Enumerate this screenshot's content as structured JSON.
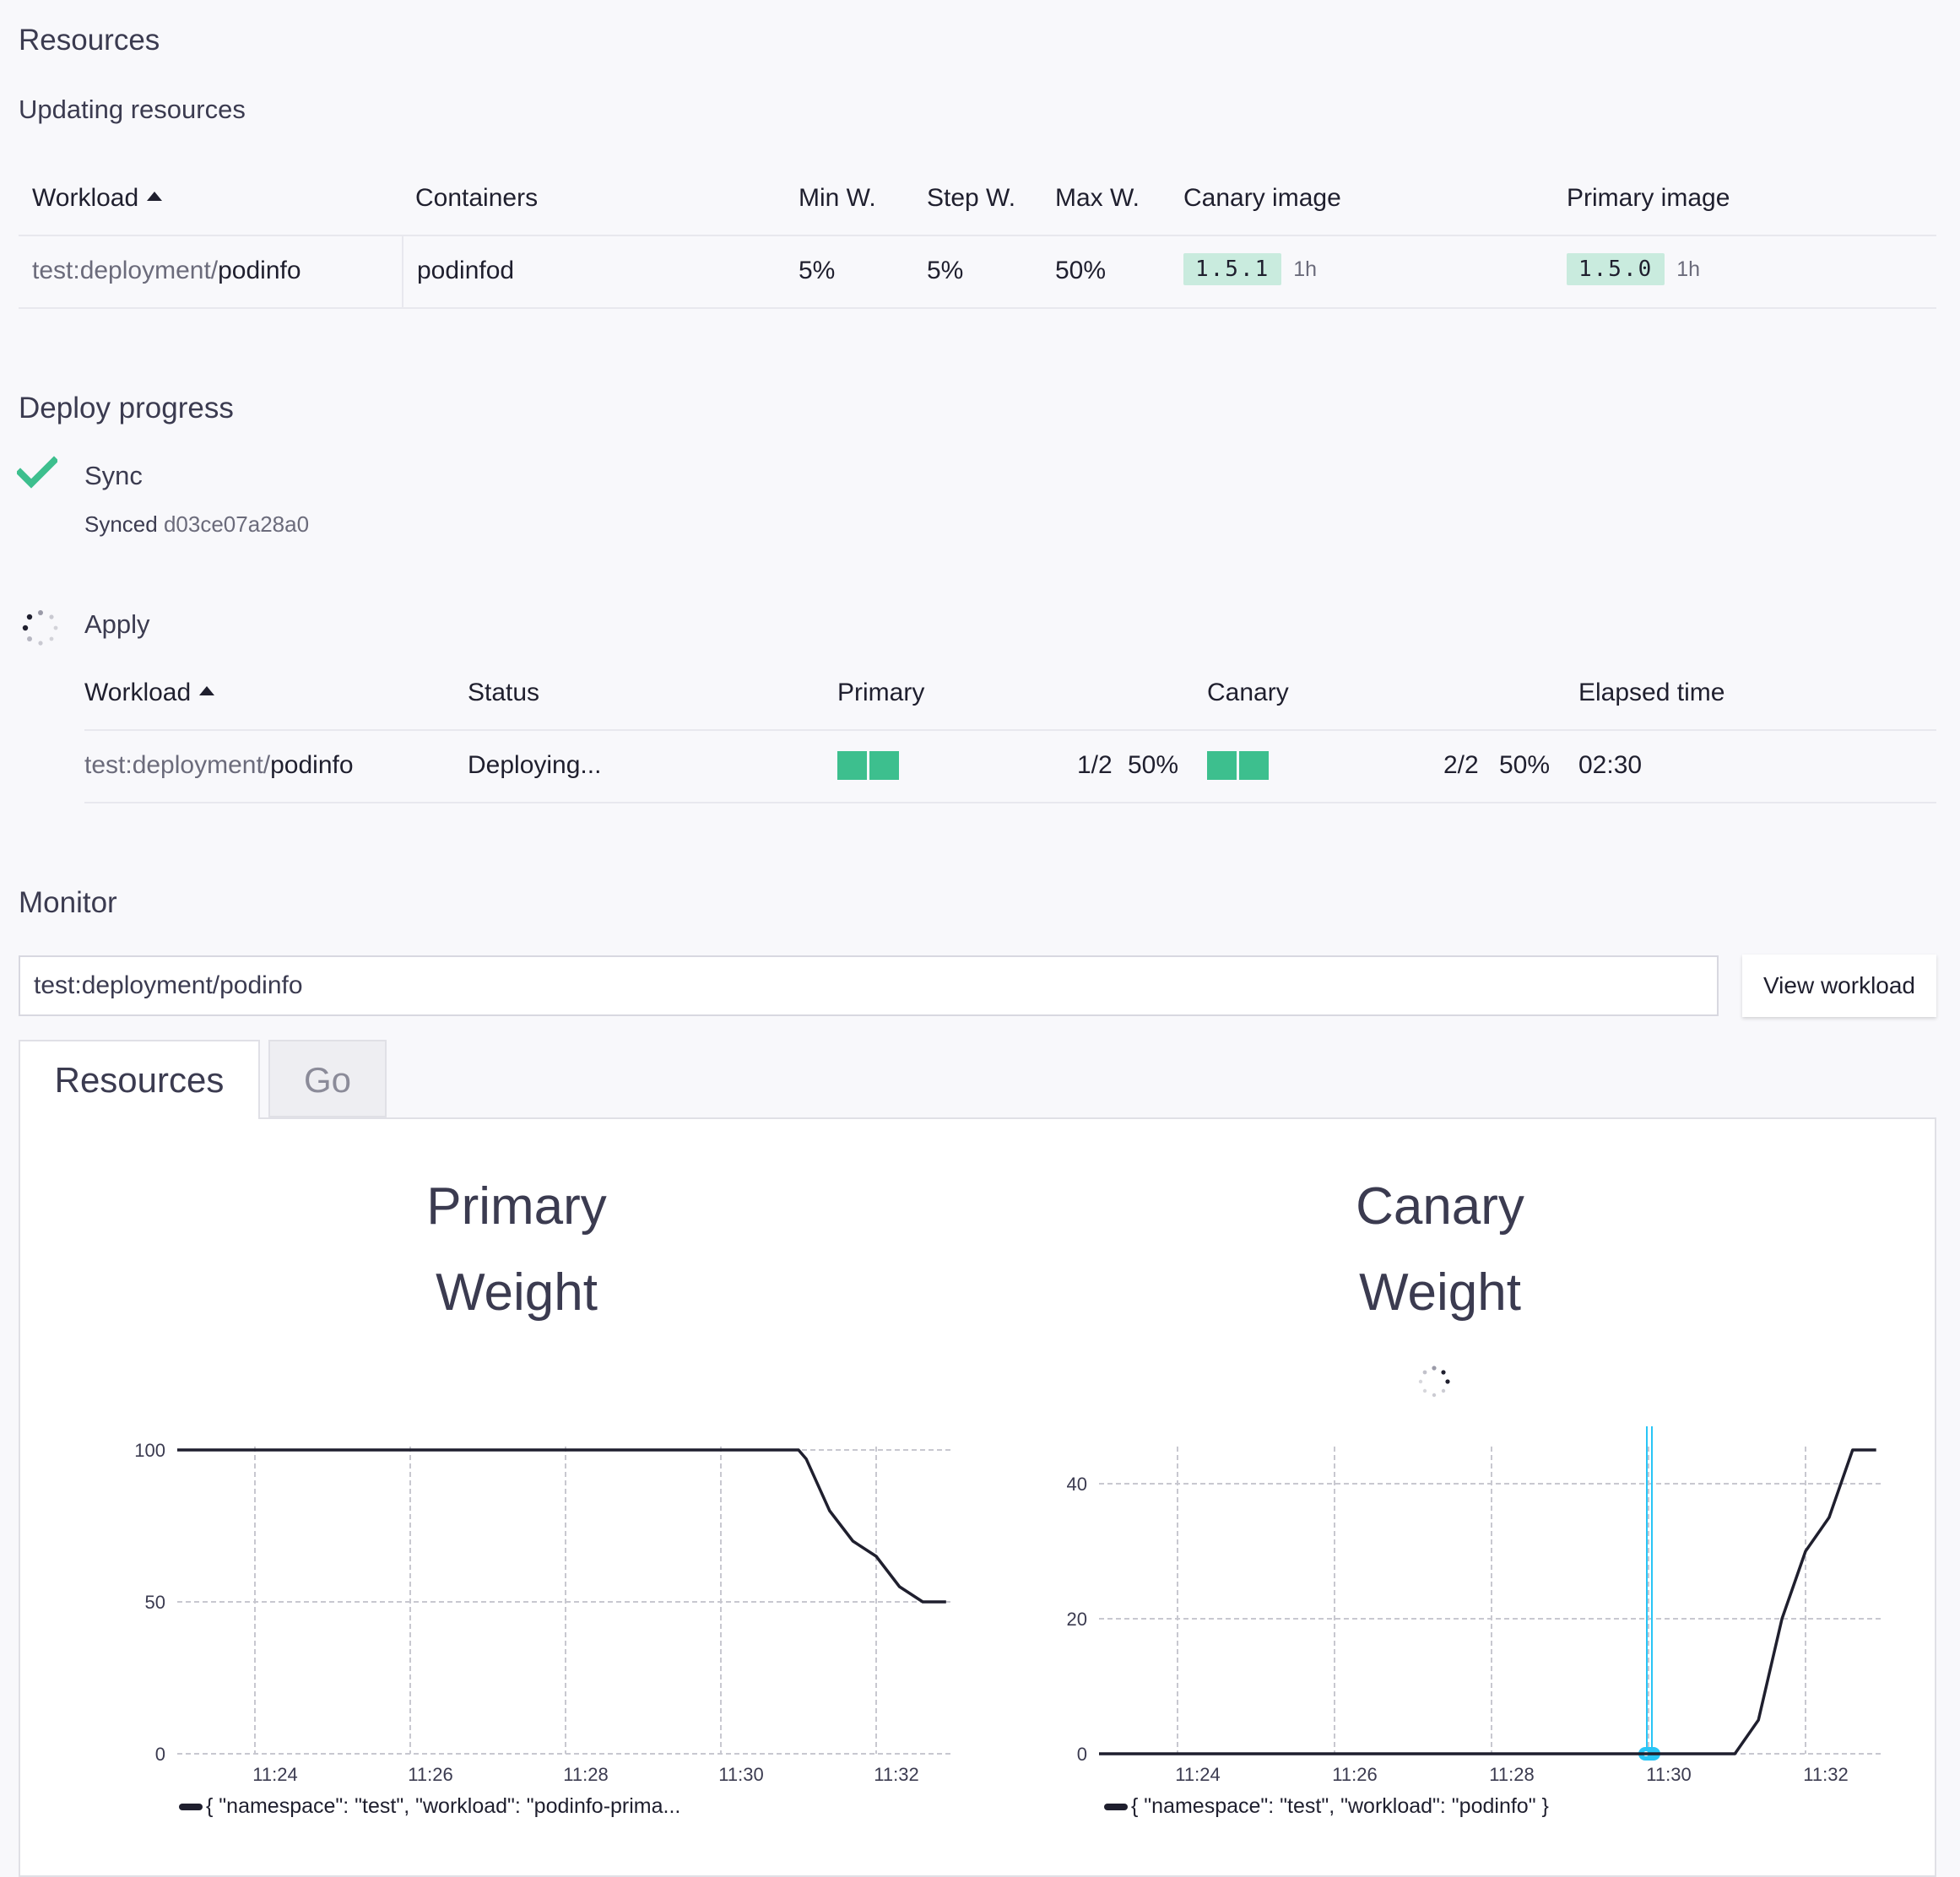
{
  "page_title": "Resources",
  "updating": {
    "title": "Updating resources",
    "columns": [
      "Workload",
      "Containers",
      "Min W.",
      "Step W.",
      "Max W.",
      "Canary image",
      "Primary image"
    ],
    "row": {
      "workload_prefix": "test:deployment/",
      "workload_name": "podinfo",
      "containers": "podinfod",
      "min_w": "5%",
      "step_w": "5%",
      "max_w": "50%",
      "canary_image": "1.5.1",
      "canary_age": "1h",
      "primary_image": "1.5.0",
      "primary_age": "1h"
    }
  },
  "deploy": {
    "title": "Deploy progress",
    "sync": {
      "label": "Sync",
      "status_prefix": "Synced",
      "commit": "d03ce07a28a0"
    },
    "apply": {
      "label": "Apply"
    },
    "columns": [
      "Workload",
      "Status",
      "Primary",
      "Canary",
      "Elapsed time"
    ],
    "row": {
      "workload_prefix": "test:deployment/",
      "workload_name": "podinfo",
      "status": "Deploying...",
      "primary_count": "1/2",
      "primary_pct": "50%",
      "primary_fill": 1.0,
      "canary_count": "2/2",
      "canary_pct": "50%",
      "canary_fill": 1.0,
      "elapsed": "02:30"
    }
  },
  "monitor": {
    "title": "Monitor",
    "input_value": "test:deployment/podinfo",
    "view_button": "View workload",
    "tabs": [
      "Resources",
      "Go"
    ]
  },
  "colors": {
    "accent": "#3dbf8e",
    "badge": "#c9ebde",
    "marker": "#29c5f6"
  },
  "chart_data": [
    {
      "type": "line",
      "title_line1": "Primary",
      "title_line2": "Weight",
      "x": [
        "11:23",
        "11:24",
        "11:25",
        "11:26",
        "11:27",
        "11:28",
        "11:29",
        "11:30",
        "11:31",
        "11:31.1",
        "11:31.4",
        "11:31.7",
        "11:32",
        "11:32.3",
        "11:32.6",
        "11:32.9"
      ],
      "x_minutes": [
        23,
        24,
        25,
        26,
        27,
        28,
        29,
        30,
        31,
        31.1,
        31.4,
        31.7,
        32,
        32.3,
        32.6,
        32.9
      ],
      "values": [
        100,
        100,
        100,
        100,
        100,
        100,
        100,
        100,
        100,
        97,
        80,
        70,
        65,
        55,
        50,
        50
      ],
      "x_ticks": [
        "11:24",
        "11:26",
        "11:28",
        "11:30",
        "11:32"
      ],
      "x_tick_minutes": [
        24,
        26,
        28,
        30,
        32
      ],
      "y_ticks": [
        0,
        50,
        100
      ],
      "xlim": [
        23,
        33
      ],
      "ylim": [
        0,
        100
      ],
      "legend": "{ \"namespace\": \"test\", \"workload\": \"podinfo-prima...",
      "legend_position": "bottom-left"
    },
    {
      "type": "line",
      "title_line1": "Canary",
      "title_line2": "Weight",
      "x_minutes": [
        23,
        24,
        25,
        26,
        27,
        28,
        29,
        30,
        31,
        31.1,
        31.4,
        31.7,
        32,
        32.3,
        32.6,
        32.9
      ],
      "values": [
        0,
        0,
        0,
        0,
        0,
        0,
        0,
        0,
        0,
        0,
        5,
        20,
        30,
        35,
        45,
        45
      ],
      "x_ticks": [
        "11:24",
        "11:26",
        "11:28",
        "11:30",
        "11:32"
      ],
      "x_tick_minutes": [
        24,
        26,
        28,
        30,
        32
      ],
      "y_ticks": [
        0,
        20,
        40
      ],
      "xlim": [
        23,
        33
      ],
      "ylim": [
        0,
        45
      ],
      "annotation_minutes": 30,
      "legend": "{ \"namespace\": \"test\", \"workload\": \"podinfo\" }",
      "legend_position": "bottom-left"
    }
  ]
}
